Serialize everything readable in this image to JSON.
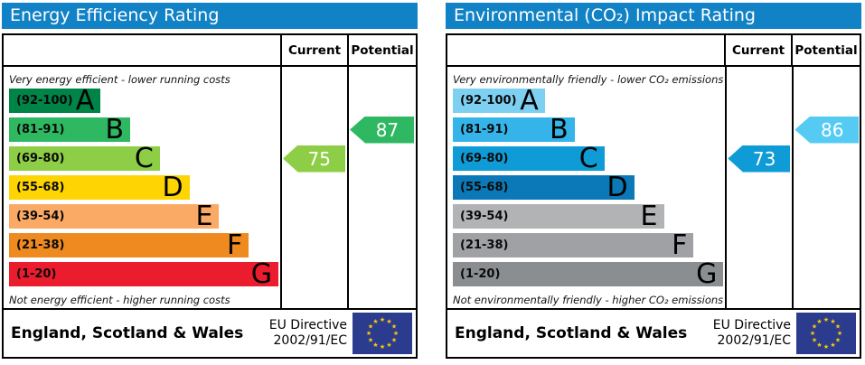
{
  "charts": [
    {
      "title": "Energy Efficiency Rating",
      "header_color": "#1282c6",
      "columns": {
        "current": "Current",
        "potential": "Potential"
      },
      "captions": {
        "top": "Very energy efficient - lower running costs",
        "bottom": "Not energy efficient - higher running costs"
      },
      "bands": [
        {
          "range": "(92-100)",
          "letter": "A",
          "color": "#008347",
          "width_pct": 34
        },
        {
          "range": "(81-91)",
          "letter": "B",
          "color": "#2eb862",
          "width_pct": 45
        },
        {
          "range": "(69-80)",
          "letter": "C",
          "color": "#8dce46",
          "width_pct": 56
        },
        {
          "range": "(55-68)",
          "letter": "D",
          "color": "#fed403",
          "width_pct": 67
        },
        {
          "range": "(39-54)",
          "letter": "E",
          "color": "#fbaa65",
          "width_pct": 78
        },
        {
          "range": "(21-38)",
          "letter": "F",
          "color": "#ef8a20",
          "width_pct": 89
        },
        {
          "range": "(1-20)",
          "letter": "G",
          "color": "#ea1c2d",
          "width_pct": 100
        }
      ],
      "current": {
        "value": 75,
        "band": "C",
        "band_row": 2,
        "color": "#8dce46"
      },
      "potential": {
        "value": 87,
        "band": "B",
        "band_row": 1,
        "color": "#2eb862"
      },
      "footer": {
        "region": "England, Scotland & Wales",
        "directive_line1": "EU Directive",
        "directive_line2": "2002/91/EC",
        "flag_colors": {
          "field": "#2b3c8e",
          "stars": "#ffcc00"
        }
      }
    },
    {
      "title": "Environmental (CO₂) Impact Rating",
      "header_color": "#1282c6",
      "columns": {
        "current": "Current",
        "potential": "Potential"
      },
      "captions": {
        "top": "Very environmentally friendly - lower CO₂ emissions",
        "bottom": "Not environmentally friendly - higher CO₂ emissions"
      },
      "bands": [
        {
          "range": "(92-100)",
          "letter": "A",
          "color": "#7ed0f2",
          "width_pct": 34
        },
        {
          "range": "(81-91)",
          "letter": "B",
          "color": "#35b4e9",
          "width_pct": 45
        },
        {
          "range": "(69-80)",
          "letter": "C",
          "color": "#0f9bd5",
          "width_pct": 56
        },
        {
          "range": "(55-68)",
          "letter": "D",
          "color": "#0b79b8",
          "width_pct": 67
        },
        {
          "range": "(39-54)",
          "letter": "E",
          "color": "#b1b3b5",
          "width_pct": 78
        },
        {
          "range": "(21-38)",
          "letter": "F",
          "color": "#9fa1a4",
          "width_pct": 89
        },
        {
          "range": "(1-20)",
          "letter": "G",
          "color": "#8b8e91",
          "width_pct": 100
        }
      ],
      "current": {
        "value": 73,
        "band": "C",
        "band_row": 2,
        "color": "#0f9bd5"
      },
      "potential": {
        "value": 86,
        "band": "B",
        "band_row": 1,
        "color": "#55cbf4"
      },
      "footer": {
        "region": "England, Scotland & Wales",
        "directive_line1": "EU Directive",
        "directive_line2": "2002/91/EC",
        "flag_colors": {
          "field": "#2b3c8e",
          "stars": "#ffcc00"
        }
      }
    }
  ],
  "chart_data": [
    {
      "type": "bar",
      "orientation": "horizontal",
      "title": "Energy Efficiency Rating",
      "categories": [
        "A",
        "B",
        "C",
        "D",
        "E",
        "F",
        "G"
      ],
      "band_ranges": [
        "92-100",
        "81-91",
        "69-80",
        "55-68",
        "39-54",
        "21-38",
        "1-20"
      ],
      "bar_lengths_pct": [
        34,
        45,
        56,
        67,
        78,
        89,
        100
      ],
      "bar_colors": [
        "#008347",
        "#2eb862",
        "#8dce46",
        "#fed403",
        "#fbaa65",
        "#ef8a20",
        "#ea1c2d"
      ],
      "markers": [
        {
          "label": "Current",
          "value": 75,
          "band": "C",
          "color": "#8dce46"
        },
        {
          "label": "Potential",
          "value": 87,
          "band": "B",
          "color": "#2eb862"
        }
      ],
      "annotations": [
        "Very energy efficient - lower running costs",
        "Not energy efficient - higher running costs"
      ],
      "footer": "England, Scotland & Wales | EU Directive 2002/91/EC"
    },
    {
      "type": "bar",
      "orientation": "horizontal",
      "title": "Environmental (CO₂) Impact Rating",
      "categories": [
        "A",
        "B",
        "C",
        "D",
        "E",
        "F",
        "G"
      ],
      "band_ranges": [
        "92-100",
        "81-91",
        "69-80",
        "55-68",
        "39-54",
        "21-38",
        "1-20"
      ],
      "bar_lengths_pct": [
        34,
        45,
        56,
        67,
        78,
        89,
        100
      ],
      "bar_colors": [
        "#7ed0f2",
        "#35b4e9",
        "#0f9bd5",
        "#0b79b8",
        "#b1b3b5",
        "#9fa1a4",
        "#8b8e91"
      ],
      "markers": [
        {
          "label": "Current",
          "value": 73,
          "band": "C",
          "color": "#0f9bd5"
        },
        {
          "label": "Potential",
          "value": 86,
          "band": "B",
          "color": "#55cbf4"
        }
      ],
      "annotations": [
        "Very environmentally friendly - lower CO₂ emissions",
        "Not environmentally friendly - higher CO₂ emissions"
      ],
      "footer": "England, Scotland & Wales | EU Directive 2002/91/EC"
    }
  ]
}
